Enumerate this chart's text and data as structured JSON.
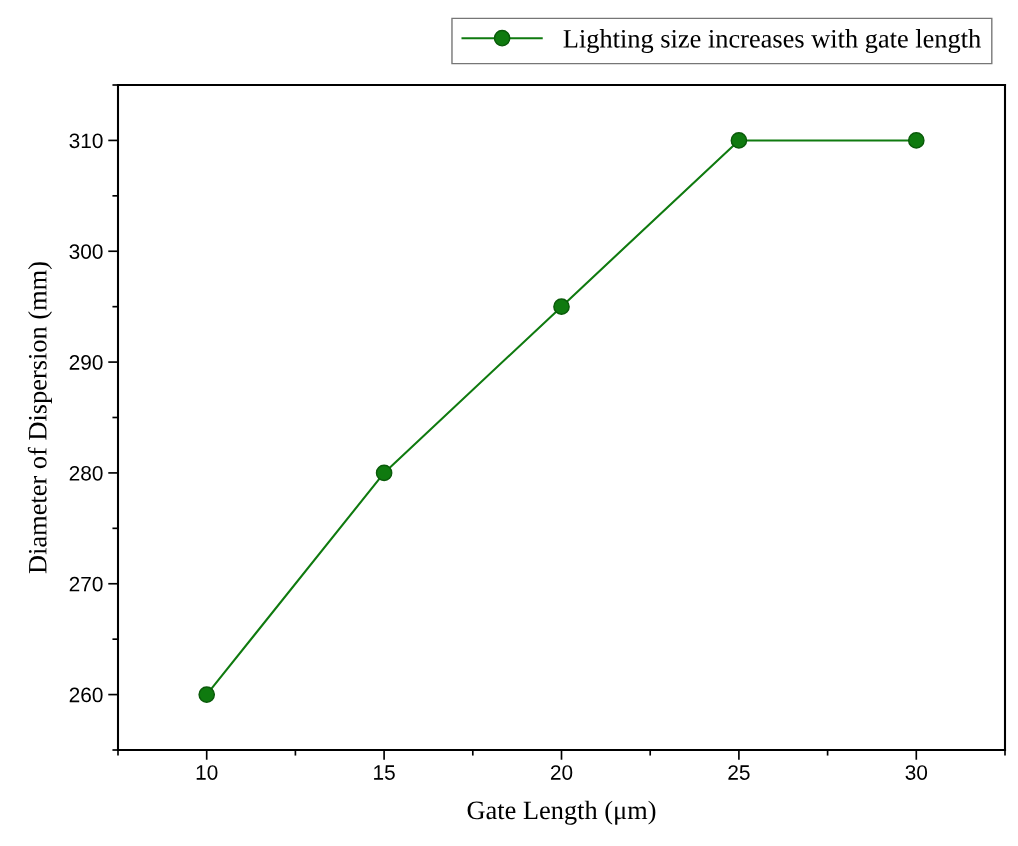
{
  "chart_data": {
    "type": "line",
    "xlabel": "Gate Length (μm)",
    "ylabel": "Diameter of Dispersion (mm)",
    "x": [
      10,
      15,
      20,
      25,
      30
    ],
    "series": [
      {
        "name": "Lighting size increases with gate length",
        "color": "#0f7a0f",
        "values": [
          260,
          280,
          295,
          310,
          310
        ]
      }
    ],
    "xlim": [
      7.5,
      32.5
    ],
    "xticks": [
      10,
      15,
      20,
      25,
      30
    ],
    "ylim": [
      255,
      315
    ],
    "yticks": [
      260,
      270,
      280,
      290,
      300,
      310
    ],
    "marker": "circle",
    "line_style": "solid",
    "legend": "top right",
    "grid": false
  }
}
